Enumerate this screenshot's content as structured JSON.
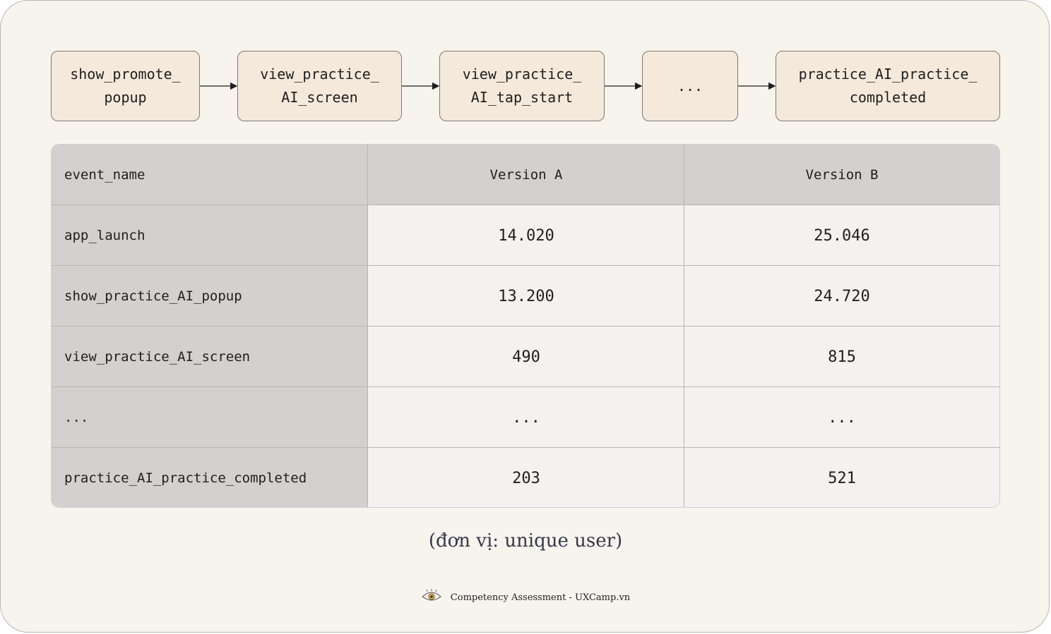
{
  "flow": {
    "steps": [
      "show_promote_\npopup",
      "view_practice_\nAI_screen",
      "view_practice_\nAI_tap_start",
      "...",
      "practice_AI_practice_\ncompleted"
    ]
  },
  "table": {
    "headers": [
      "event_name",
      "Version A",
      "Version B"
    ],
    "rows": [
      [
        "app_launch",
        "14.020",
        "25.046"
      ],
      [
        "show_practice_AI_popup",
        "13.200",
        "24.720"
      ],
      [
        "view_practice_AI_screen",
        "490",
        "815"
      ],
      [
        "...",
        "...",
        "..."
      ],
      [
        "practice_AI_practice_completed",
        "203",
        "521"
      ]
    ]
  },
  "unit_note": "(đơn vị: unique user)",
  "footer": {
    "text": "Competency Assessment - UXCamp.vn",
    "logo_icon": "eye-icon"
  },
  "colors": {
    "background": "#f7f4ee",
    "node_fill": "#f5e9db",
    "header_fill": "#d2d1cf",
    "cell_fill": "#f3f2f0"
  }
}
